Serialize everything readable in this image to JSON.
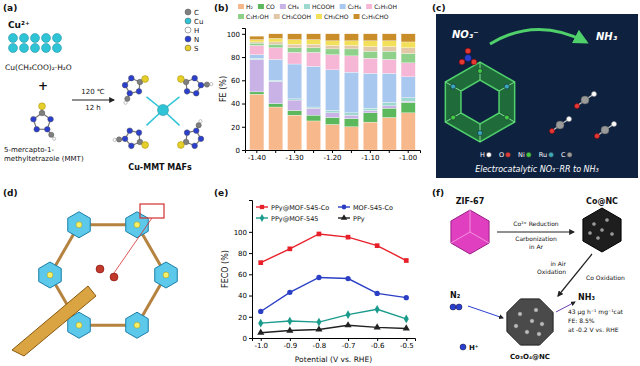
{
  "chart_data": [
    {
      "type": "bar",
      "stacked": true,
      "y_label": "FE (%)",
      "categories": [
        "-1.40",
        null,
        "-1.30",
        null,
        "-1.20",
        null,
        "-1.10",
        null,
        "-1.00"
      ],
      "ylim": [
        0,
        105
      ],
      "yticks": [
        0,
        20,
        40,
        60,
        80,
        100
      ],
      "legend": "top",
      "series": [
        {
          "name": "H₂",
          "color": "#f7b98c",
          "values": [
            48,
            37,
            30,
            25,
            22,
            20,
            24,
            28,
            32
          ]
        },
        {
          "name": "CO",
          "color": "#5cb85c",
          "values": [
            2,
            3,
            4,
            5,
            6,
            7,
            8,
            8,
            9
          ]
        },
        {
          "name": "CH₄",
          "color": "#c9b3e6",
          "values": [
            28,
            19,
            9,
            6,
            4,
            3,
            2,
            2,
            1
          ]
        },
        {
          "name": "HCOOH",
          "color": "#9ed9d0",
          "values": [
            1,
            1,
            1,
            1,
            2,
            2,
            2,
            3,
            3
          ]
        },
        {
          "name": "C₂H₄",
          "color": "#a9c8f0",
          "values": [
            3,
            18,
            30,
            35,
            35,
            35,
            30,
            25,
            18
          ]
        },
        {
          "name": "C₂H₅OH",
          "color": "#f6b6d6",
          "values": [
            8,
            10,
            10,
            12,
            13,
            14,
            13,
            12,
            12
          ]
        },
        {
          "name": "C₃H₇OH",
          "color": "#8fd18a",
          "values": [
            2,
            3,
            4,
            4,
            5,
            6,
            6,
            7,
            8
          ]
        },
        {
          "name": "CH₃COOH",
          "color": "#e2c8a6",
          "values": [
            1,
            2,
            3,
            3,
            3,
            3,
            4,
            4,
            5
          ]
        },
        {
          "name": "CH₃CHO",
          "color": "#f3e05a",
          "values": [
            2,
            3,
            4,
            4,
            4,
            4,
            5,
            5,
            5
          ]
        },
        {
          "name": "C₂H₅CHO",
          "color": "#c98e2a",
          "values": [
            3,
            4,
            5,
            5,
            6,
            6,
            6,
            6,
            7
          ]
        }
      ]
    },
    {
      "type": "line",
      "x_label": "Potential (V vs. RHE)",
      "y_label": "FECO (%)",
      "x": [
        -1.0,
        -0.9,
        -0.8,
        -0.7,
        -0.6,
        -0.5
      ],
      "xlim": [
        -1.03,
        -0.47
      ],
      "xticks": [
        {
          "value": -1.0,
          "label": "-1.0"
        },
        -0.9,
        -0.8,
        -0.7,
        -0.6,
        -0.5
      ],
      "ylim": [
        0,
        130
      ],
      "yticks": [
        0,
        20,
        40,
        60,
        80,
        100
      ],
      "legend": "top",
      "series": [
        {
          "name": "PPy@MOF-545-Co",
          "color": "#e8202a",
          "marker": "square",
          "values": [
            71,
            84,
            98,
            95,
            87,
            73
          ]
        },
        {
          "name": "MOF-545-Co",
          "color": "#2b3fc4",
          "marker": "circle",
          "values": [
            25,
            43,
            57,
            56,
            42,
            38
          ]
        },
        {
          "name": "PPy@MOF-545",
          "color": "#1a9b8c",
          "marker": "diamond",
          "values": [
            14,
            16,
            15,
            22,
            27,
            18
          ]
        },
        {
          "name": "PPy",
          "color": "#222222",
          "marker": "triangle",
          "values": [
            5,
            7,
            8,
            12,
            10,
            9
          ]
        }
      ]
    }
  ],
  "panel_labels": [
    "(a)",
    "(b)",
    "(c)",
    "(d)",
    "(e)",
    "(f)"
  ],
  "panel_a": {
    "ion": "Cu²⁺",
    "salt": "Cu(CH₃COO)₂·H₂O",
    "plus": "+",
    "ligand": [
      "5-mercapto-1-",
      "methyltetrazole (MMT)"
    ],
    "conditions": [
      "120 ℃",
      "12 h"
    ],
    "product": "Cu-MMT MAFs",
    "atom_legend": [
      {
        "symbol": "C",
        "color": "#7f7f7f"
      },
      {
        "symbol": "Cu",
        "color": "#2ec4d6"
      },
      {
        "symbol": "H",
        "color": "#ffffff"
      },
      {
        "symbol": "N",
        "color": "#2a3fd0"
      },
      {
        "symbol": "S",
        "color": "#e6cf2a"
      }
    ]
  },
  "panel_c": {
    "reactant": "NO₃⁻",
    "product": "NH₃",
    "caption": "Electrocatalytic NO₃⁻RR to NH₃",
    "atom_legend": [
      {
        "symbol": "H",
        "color": "#ffffff"
      },
      {
        "symbol": "O",
        "color": "#e53935"
      },
      {
        "symbol": "Ni",
        "color": "#43c943"
      },
      {
        "symbol": "Ru",
        "color": "#3aa8b8"
      },
      {
        "symbol": "C",
        "color": "#9a9a9a"
      }
    ]
  },
  "panel_f": {
    "precursor": "ZIF-67",
    "intermediate": "Co@NC",
    "product": "Co₃O₄@NC",
    "step_1": [
      "Co²⁺ Reduction",
      "Carbonization",
      "in Ar"
    ],
    "step_2": [
      "in Air",
      "Oxidation"
    ],
    "co_oxidation": "Co Oxidation",
    "reactant": "N₂",
    "output": "NH₃",
    "performance": [
      "43 μg h⁻¹ mg⁻¹cat",
      "FE: 8.5%",
      "at -0.2 V vs. RHE"
    ],
    "proton": "H⁺"
  }
}
